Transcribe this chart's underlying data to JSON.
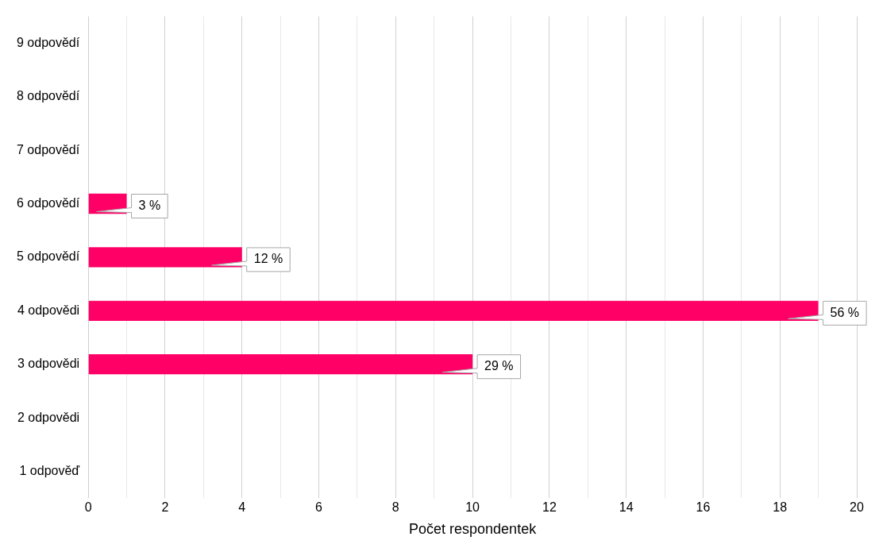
{
  "chart_data": {
    "type": "bar",
    "orientation": "horizontal",
    "xlabel": "Počet respondentek",
    "categories": [
      "9 odpovědí",
      "8 odpovědí",
      "7 odpovědí",
      "6 odpovědí",
      "5 odpovědí",
      "4 odpovědi",
      "3 odpovědi",
      "2 odpovědi",
      "1 odpověď"
    ],
    "values": [
      0,
      0,
      0,
      1,
      4,
      19,
      10,
      0,
      0
    ],
    "annotations": [
      {
        "text": "3 %",
        "x": 1,
        "y": "6 odpovědí"
      },
      {
        "text": "12 %",
        "x": 4,
        "y": "5 odpovědí"
      },
      {
        "text": "56 %",
        "x": 19,
        "y": "4 odpovědi"
      },
      {
        "text": "29 %",
        "x": 10,
        "y": "3 odpovědi"
      }
    ],
    "color": "#ff0066",
    "xlim": [
      0,
      20
    ],
    "xticks": [
      0,
      {
        "value": 1,
        "label": null
      },
      2,
      {
        "value": 3,
        "label": null
      },
      4,
      {
        "value": 5,
        "label": null
      },
      6,
      {
        "value": 7,
        "label": null
      },
      8,
      {
        "value": 9,
        "label": null
      },
      10,
      {
        "value": 11,
        "label": null
      },
      12,
      {
        "value": 13,
        "label": null
      },
      14,
      {
        "value": 15,
        "label": null
      },
      16,
      {
        "value": 17,
        "label": null
      },
      18,
      {
        "value": 19,
        "label": null
      },
      20
    ],
    "grid": "x"
  }
}
